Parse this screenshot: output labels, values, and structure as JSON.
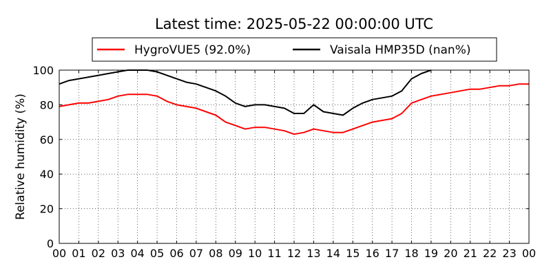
{
  "chart_data": {
    "type": "line",
    "title": "Latest time: 2025-05-22 00:00:00 UTC",
    "xlabel": "",
    "ylabel": "Relative humidity (%)",
    "xlim": [
      0,
      24
    ],
    "ylim": [
      0,
      100
    ],
    "grid": true,
    "legend_placement": "top-center",
    "x_ticks": [
      "00",
      "01",
      "02",
      "03",
      "04",
      "05",
      "06",
      "07",
      "08",
      "09",
      "10",
      "11",
      "12",
      "13",
      "14",
      "15",
      "16",
      "17",
      "18",
      "19",
      "20",
      "21",
      "22",
      "23",
      "00"
    ],
    "y_ticks": [
      0,
      20,
      40,
      60,
      80,
      100
    ],
    "series": [
      {
        "name": "HygroVUE5 (92.0%)",
        "color": "#ff0000",
        "x": [
          0,
          0.5,
          1,
          1.5,
          2,
          2.5,
          3,
          3.5,
          4,
          4.5,
          5,
          5.5,
          6,
          6.5,
          7,
          7.5,
          8,
          8.5,
          9,
          9.5,
          10,
          10.5,
          11,
          11.5,
          12,
          12.5,
          13,
          13.5,
          14,
          14.5,
          15,
          15.5,
          16,
          16.5,
          17,
          17.5,
          18,
          18.5,
          19,
          19.5,
          20,
          20.5,
          21,
          21.5,
          22,
          22.5,
          23,
          23.5,
          24
        ],
        "y": [
          79,
          80,
          81,
          81,
          82,
          83,
          85,
          86,
          86,
          86,
          85,
          82,
          80,
          79,
          78,
          76,
          74,
          70,
          68,
          66,
          67,
          67,
          66,
          65,
          63,
          64,
          66,
          65,
          64,
          64,
          66,
          68,
          70,
          71,
          72,
          75,
          81,
          83,
          85,
          86,
          87,
          88,
          89,
          89,
          90,
          91,
          91,
          92,
          92
        ]
      },
      {
        "name": "Vaisala HMP35D (nan%)",
        "color": "#000000",
        "x": [
          0,
          0.5,
          1,
          1.5,
          2,
          2.5,
          3,
          3.5,
          4,
          4.5,
          5,
          5.5,
          6,
          6.5,
          7,
          7.5,
          8,
          8.5,
          9,
          9.5,
          10,
          10.5,
          11,
          11.5,
          12,
          12.5,
          13,
          13.5,
          14,
          14.5,
          15,
          15.5,
          16,
          16.5,
          17,
          17.5,
          18,
          18.5,
          19
        ],
        "y": [
          92,
          94,
          95,
          96,
          97,
          98,
          99,
          100,
          100,
          100,
          99,
          97,
          95,
          93,
          92,
          90,
          88,
          85,
          81,
          79,
          80,
          80,
          79,
          78,
          75,
          75,
          80,
          76,
          75,
          74,
          78,
          81,
          83,
          84,
          85,
          88,
          95,
          98,
          100
        ]
      }
    ]
  }
}
